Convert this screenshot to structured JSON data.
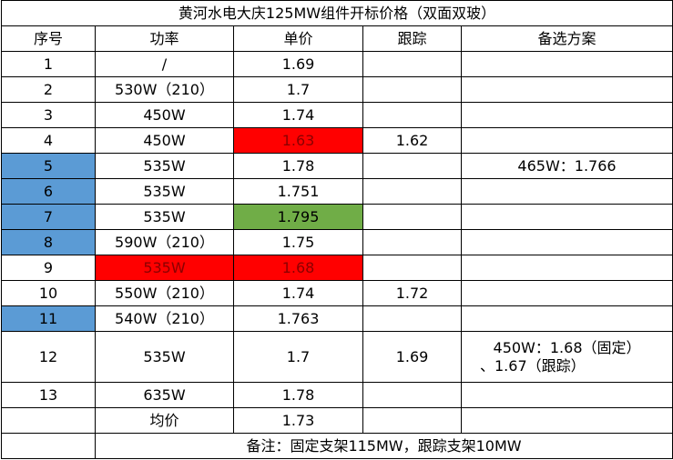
{
  "table": {
    "title": "黄河水电大庆125MW组件开标价格（双面双玻）",
    "header": [
      "序号",
      "功率",
      "单价",
      "跟踪",
      "备选方案"
    ],
    "rows": [
      {
        "no": "1",
        "power": "/",
        "price": "1.69"
      },
      {
        "no": "2",
        "power": "530W（210）",
        "price": "1.7"
      },
      {
        "no": "3",
        "power": "450W",
        "price": "1.74"
      },
      {
        "no": "4",
        "power": "450W",
        "price": "1.63",
        "tracking": "1.62",
        "fill": {
          "price": "#ff0000"
        }
      },
      {
        "no": "5",
        "power": "535W",
        "price": "1.78",
        "alt": [
          "465W：1.766"
        ],
        "fill": {
          "no": "#5b9bd5"
        }
      },
      {
        "no": "6",
        "power": "535W",
        "price": "1.751",
        "fill": {
          "no": "#5b9bd5"
        }
      },
      {
        "no": "7",
        "power": "535W",
        "price": "1.795",
        "fill": {
          "no": "#5b9bd5",
          "price": "#70ad47"
        }
      },
      {
        "no": "8",
        "power": "590W（210）",
        "price": "1.75",
        "fill": {
          "no": "#5b9bd5"
        }
      },
      {
        "no": "9",
        "power": "535W",
        "price": "1.68",
        "fill": {
          "power": "#ff0000",
          "price": "#ff0000"
        }
      },
      {
        "no": "10",
        "power": "550W（210）",
        "price": "1.74",
        "tracking": "1.72"
      },
      {
        "no": "11",
        "power": "540W（210）",
        "price": "1.763",
        "fill": {
          "no": "#5b9bd5"
        }
      },
      {
        "no": "12",
        "power": "535W",
        "price": "1.7",
        "tracking": "1.69",
        "alt": [
          "450W：1.68（固定）",
          "、1.67（跟踪）"
        ]
      },
      {
        "no": "13",
        "power": "635W",
        "price": "1.78"
      }
    ],
    "average": {
      "label": "均价",
      "price": "1.73"
    },
    "note": "备注：固定支架115MW，跟踪支架10MW"
  }
}
